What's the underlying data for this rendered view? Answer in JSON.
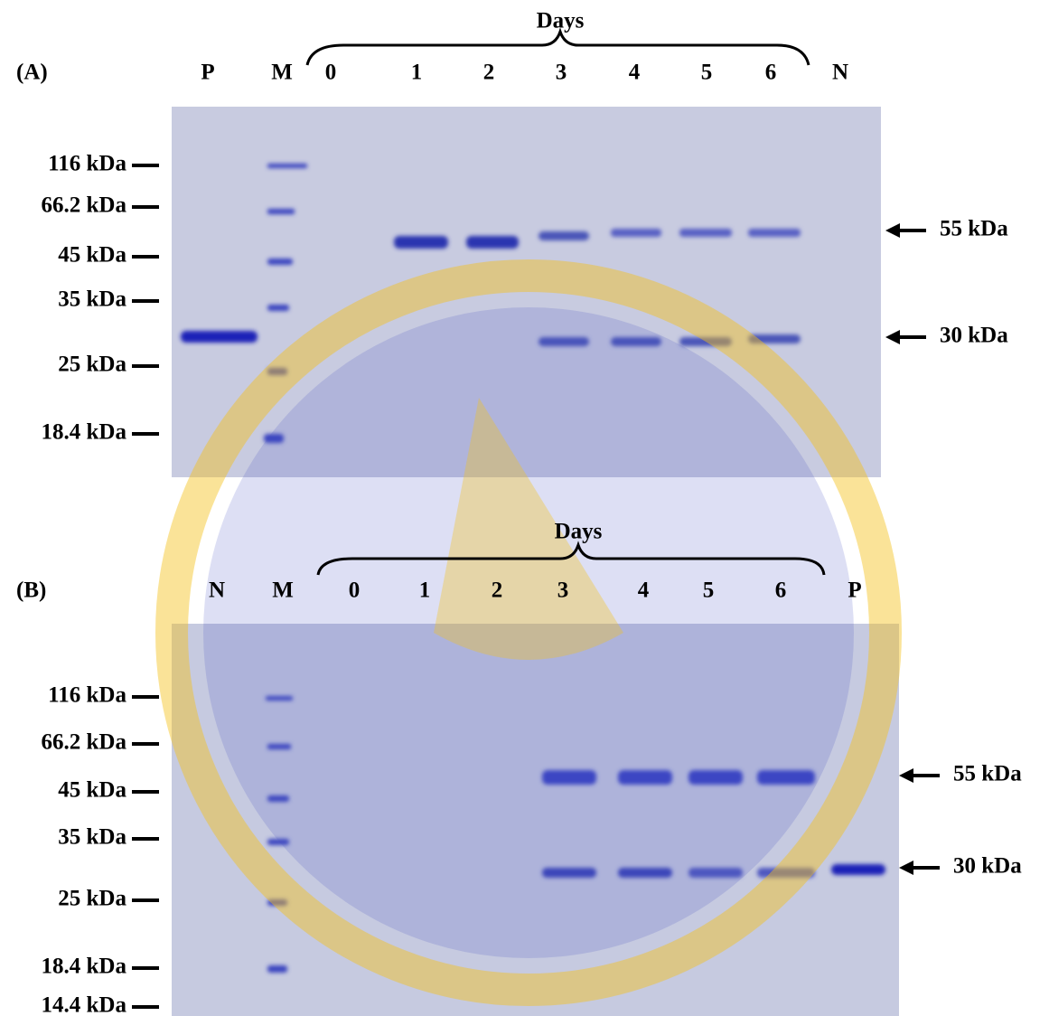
{
  "panels": [
    {
      "label": "(A)",
      "group_label": "Days",
      "lanes": [
        "P",
        "M",
        "0",
        "1",
        "2",
        "3",
        "4",
        "5",
        "6",
        "N"
      ],
      "markers": [
        "116 kDa",
        "66.2 kDa",
        "45 kDa",
        "35 kDa",
        "25 kDa",
        "18.4 kDa"
      ],
      "arrows": [
        "55 kDa",
        "30 kDa"
      ]
    },
    {
      "label": "(B)",
      "group_label": "Days",
      "lanes": [
        "N",
        "M",
        "0",
        "1",
        "2",
        "3",
        "4",
        "5",
        "6",
        "P"
      ],
      "markers": [
        "116 kDa",
        "66.2 kDa",
        "45 kDa",
        "35 kDa",
        "25 kDa",
        "18.4 kDa",
        "14.4 kDa"
      ],
      "arrows": [
        "55 kDa",
        "30 kDa"
      ]
    }
  ]
}
